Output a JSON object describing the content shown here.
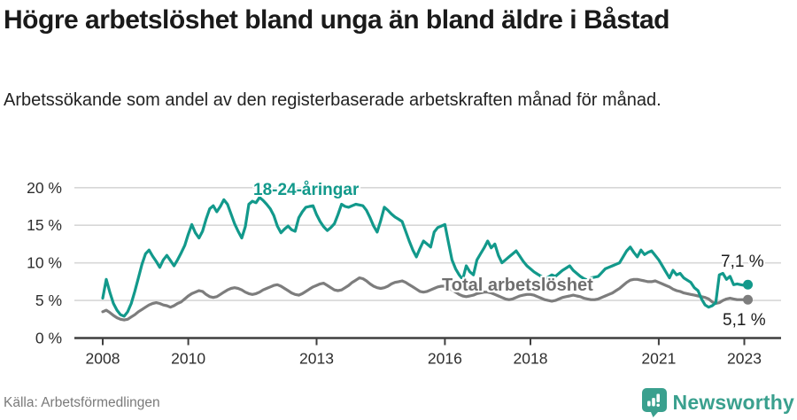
{
  "header": {
    "title": "Högre arbetslöshet bland unga än bland äldre i Båstad",
    "subtitle": "Arbetssökande som andel av den registerbaserade arbetskraften månad för månad."
  },
  "chart_data": {
    "type": "line",
    "title": "Högre arbetslöshet bland unga än bland äldre i Båstad",
    "unit": "%",
    "frequency": "monthly",
    "x_start": "2008-01",
    "x_end": "2023-02",
    "ylim": [
      0,
      20
    ],
    "y_ticks": [
      0,
      5,
      10,
      15,
      20
    ],
    "y_tick_suffix": " %",
    "x_ticks": [
      2008,
      2010,
      2013,
      2016,
      2018,
      2021,
      2023
    ],
    "grid": "horizontal",
    "legend_position": "inline-labels",
    "series": [
      {
        "name": "Total arbetslöshet",
        "color": "#7d7d7d",
        "end_value": 5.1,
        "end_value_label": "5,1 %",
        "values": [
          3.5,
          3.7,
          3.4,
          3.0,
          2.7,
          2.5,
          2.4,
          2.5,
          2.8,
          3.1,
          3.5,
          3.8,
          4.1,
          4.4,
          4.6,
          4.7,
          4.6,
          4.4,
          4.3,
          4.1,
          4.3,
          4.6,
          4.8,
          5.2,
          5.6,
          5.9,
          6.1,
          6.3,
          6.2,
          5.8,
          5.5,
          5.4,
          5.5,
          5.8,
          6.1,
          6.4,
          6.6,
          6.7,
          6.6,
          6.4,
          6.1,
          5.9,
          5.8,
          5.9,
          6.1,
          6.4,
          6.6,
          6.8,
          7.0,
          7.1,
          6.9,
          6.6,
          6.3,
          6.0,
          5.8,
          5.7,
          5.9,
          6.2,
          6.5,
          6.8,
          7.0,
          7.2,
          7.3,
          7.0,
          6.7,
          6.4,
          6.3,
          6.4,
          6.7,
          7.0,
          7.4,
          7.7,
          8.0,
          7.9,
          7.6,
          7.2,
          6.9,
          6.7,
          6.6,
          6.7,
          6.9,
          7.2,
          7.4,
          7.5,
          7.6,
          7.4,
          7.1,
          6.8,
          6.5,
          6.2,
          6.1,
          6.2,
          6.4,
          6.6,
          6.8,
          6.9,
          6.9,
          6.7,
          6.4,
          6.1,
          5.8,
          5.6,
          5.5,
          5.6,
          5.7,
          5.9,
          6.0,
          6.1,
          6.1,
          6.0,
          5.8,
          5.6,
          5.4,
          5.2,
          5.1,
          5.2,
          5.4,
          5.6,
          5.7,
          5.8,
          5.8,
          5.7,
          5.5,
          5.3,
          5.1,
          5.0,
          4.9,
          5.0,
          5.2,
          5.4,
          5.5,
          5.6,
          5.7,
          5.6,
          5.5,
          5.3,
          5.2,
          5.1,
          5.1,
          5.2,
          5.4,
          5.6,
          5.8,
          6.0,
          6.3,
          6.6,
          7.0,
          7.4,
          7.7,
          7.8,
          7.8,
          7.7,
          7.6,
          7.5,
          7.5,
          7.6,
          7.4,
          7.2,
          7.0,
          6.8,
          6.5,
          6.3,
          6.2,
          6.0,
          5.9,
          5.8,
          5.7,
          5.6,
          5.5,
          5.4,
          5.2,
          4.8,
          4.6,
          4.7,
          5.0,
          5.2,
          5.3,
          5.2,
          5.1,
          5.1,
          5.1,
          5.1
        ]
      },
      {
        "name": "18-24-åringar",
        "color": "#12998b",
        "end_value": 7.1,
        "end_value_label": "7,1 %",
        "values": [
          5.3,
          7.8,
          6.1,
          4.6,
          3.7,
          3.1,
          2.9,
          3.5,
          4.6,
          6.2,
          8.0,
          9.8,
          11.2,
          11.7,
          10.9,
          10.2,
          9.4,
          10.4,
          11.0,
          10.3,
          9.6,
          10.4,
          11.3,
          12.3,
          13.8,
          15.1,
          14.0,
          13.3,
          14.2,
          15.8,
          17.2,
          17.6,
          16.8,
          17.5,
          18.4,
          17.8,
          16.5,
          15.2,
          14.2,
          13.3,
          14.8,
          17.8,
          18.2,
          18.0,
          18.7,
          18.3,
          17.8,
          17.2,
          16.3,
          14.9,
          14.0,
          14.5,
          14.9,
          14.4,
          14.2,
          16.0,
          16.8,
          17.4,
          17.5,
          17.6,
          16.4,
          15.5,
          14.8,
          14.3,
          14.7,
          15.2,
          16.4,
          17.8,
          17.5,
          17.4,
          17.6,
          17.8,
          17.7,
          17.6,
          17.0,
          16.0,
          14.9,
          14.1,
          15.6,
          17.4,
          17.0,
          16.5,
          16.1,
          15.8,
          15.5,
          14.2,
          12.9,
          11.7,
          10.8,
          11.9,
          12.9,
          12.5,
          12.1,
          14.1,
          14.7,
          14.9,
          15.1,
          12.7,
          10.4,
          9.2,
          8.4,
          7.8,
          9.6,
          8.8,
          8.4,
          10.4,
          11.2,
          12.0,
          12.9,
          12.0,
          12.5,
          11.0,
          10.0,
          10.4,
          10.8,
          11.2,
          11.6,
          10.9,
          10.2,
          9.6,
          9.2,
          8.8,
          8.5,
          8.2,
          7.9,
          8.1,
          8.4,
          8.2,
          8.6,
          9.0,
          9.3,
          9.6,
          9.0,
          8.6,
          8.2,
          7.9,
          7.7,
          8.0,
          8.1,
          8.2,
          8.7,
          9.2,
          9.4,
          9.6,
          9.8,
          10.0,
          10.8,
          11.6,
          12.1,
          11.4,
          10.8,
          11.7,
          11.1,
          11.4,
          11.6,
          11.0,
          10.4,
          9.6,
          8.8,
          8.0,
          9.0,
          8.4,
          8.6,
          8.0,
          7.7,
          7.4,
          6.7,
          6.3,
          5.2,
          4.4,
          4.1,
          4.3,
          4.7,
          8.4,
          8.6,
          7.8,
          8.2,
          7.1,
          7.2,
          7.1,
          7.0,
          7.1
        ]
      }
    ]
  },
  "labels": {
    "young_series": "18-24-åringar",
    "total_series": "Total arbetslöshet",
    "young_end": "7,1 %",
    "total_end": "5,1 %"
  },
  "footer": {
    "source": "Källa: Arbetsförmedlingen",
    "brand": "Newsworthy"
  },
  "colors": {
    "accent_teal": "#12998b",
    "line_gray": "#7d7d7d",
    "label_gray": "#6e6e6e",
    "brand_teal": "#3aa08e",
    "gridline": "#d7d7d7",
    "axis": "#3f3f3f"
  }
}
